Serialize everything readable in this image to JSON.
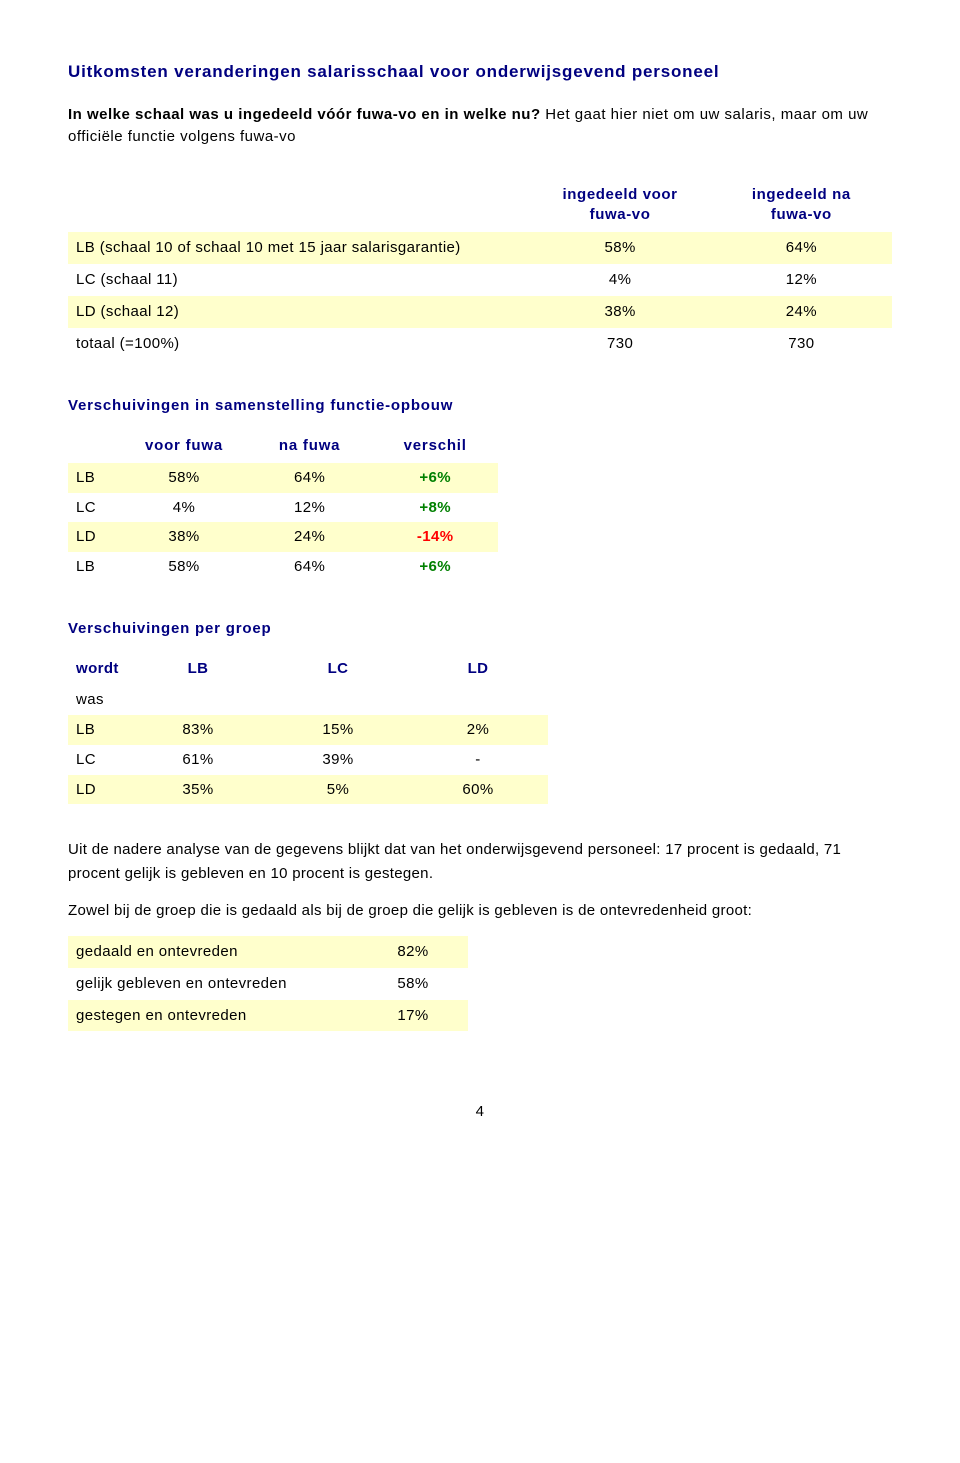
{
  "title": "Uitkomsten veranderingen salarisschaal voor onderwijsgevend personeel",
  "intro": {
    "bold_line": "In welke schaal was u ingedeeld vóór fuwa-vo en in welke nu?",
    "plain_line": "Het gaat hier niet om uw salaris, maar om uw officiële functie volgens fuwa-vo"
  },
  "table1": {
    "col_headers": [
      "ingedeeld voor\nfuwa-vo",
      "ingedeeld na\nfuwa-vo"
    ],
    "rows": [
      {
        "label": "LB (schaal 10 of schaal 10 met 15 jaar salarisgarantie)",
        "v1": "58%",
        "v2": "64%"
      },
      {
        "label": "LC (schaal 11)",
        "v1": "4%",
        "v2": "12%"
      },
      {
        "label": "LD (schaal 12)",
        "v1": "38%",
        "v2": "24%"
      },
      {
        "label": "totaal (=100%)",
        "v1": "730",
        "v2": "730"
      }
    ]
  },
  "heading2": "Verschuivingen in samenstelling functie-opbouw",
  "table2": {
    "col_headers": [
      "voor fuwa",
      "na fuwa",
      "verschil"
    ],
    "rows": [
      {
        "label": "LB",
        "v1": "58%",
        "v2": "64%",
        "diff": "+6%",
        "diff_sign": "pos"
      },
      {
        "label": "LC",
        "v1": "4%",
        "v2": "12%",
        "diff": "+8%",
        "diff_sign": "pos"
      },
      {
        "label": "LD",
        "v1": "38%",
        "v2": "24%",
        "diff": "-14%",
        "diff_sign": "neg"
      },
      {
        "label": "LB",
        "v1": "58%",
        "v2": "64%",
        "diff": "+6%",
        "diff_sign": "pos"
      }
    ]
  },
  "heading3": "Verschuivingen per groep",
  "table3": {
    "corner": "wordt",
    "col_headers": [
      "LB",
      "LC",
      "LD"
    ],
    "rowhead": "was",
    "rows": [
      {
        "label": "LB",
        "v1": "83%",
        "v2": "15%",
        "v3": "2%"
      },
      {
        "label": "LC",
        "v1": "61%",
        "v2": "39%",
        "v3": "-"
      },
      {
        "label": "LD",
        "v1": "35%",
        "v2": "5%",
        "v3": "60%"
      }
    ]
  },
  "para1": "Uit de nadere analyse van de gegevens blijkt dat van het onderwijsgevend personeel: 17 procent is gedaald, 71 procent gelijk is gebleven en 10 procent is gestegen.",
  "para2": "Zowel bij de groep die is gedaald als bij de groep die gelijk is gebleven is de ontevredenheid groot:",
  "table4": {
    "rows": [
      {
        "label": "gedaald en ontevreden",
        "v": "82%"
      },
      {
        "label": "gelijk gebleven en ontevreden",
        "v": "58%"
      },
      {
        "label": "gestegen en ontevreden",
        "v": "17%"
      }
    ]
  },
  "page_number": "4"
}
